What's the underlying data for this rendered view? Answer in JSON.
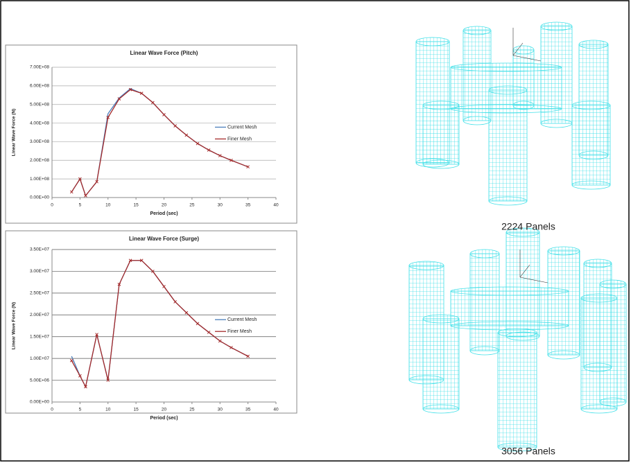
{
  "chart_data": [
    {
      "type": "line",
      "title": "Linear Wave Force (Pitch)",
      "x_label": "Period (sec)",
      "y_label": "Linear Wave Force (N)",
      "x": [
        3.5,
        5,
        6,
        8,
        10,
        12,
        14,
        16,
        18,
        20,
        22,
        24,
        26,
        28,
        30,
        32,
        35
      ],
      "series": [
        {
          "name": "Current Mesh",
          "color": "#4a7ebb",
          "values": [
            30000000,
            100000000,
            10000000,
            85000000,
            450000000,
            535000000,
            585000000,
            560000000,
            510000000,
            445000000,
            385000000,
            335000000,
            290000000,
            255000000,
            225000000,
            200000000,
            165000000
          ]
        },
        {
          "name": "Finer Mesh",
          "color": "#a52a2a",
          "values": [
            30000000,
            100000000,
            10000000,
            85000000,
            430000000,
            530000000,
            580000000,
            560000000,
            510000000,
            445000000,
            385000000,
            335000000,
            290000000,
            255000000,
            225000000,
            200000000,
            165000000
          ]
        }
      ],
      "xlim": [
        0,
        40
      ],
      "xticks": [
        0,
        5,
        10,
        15,
        20,
        25,
        30,
        35,
        40
      ],
      "ylim": [
        0,
        700000000
      ],
      "yticks": [
        {
          "value": 0,
          "label": "0.00E+00"
        },
        {
          "value": 100000000,
          "label": "1.00E+08"
        },
        {
          "value": 200000000,
          "label": "2.00E+08"
        },
        {
          "value": 300000000,
          "label": "3.00E+08"
        },
        {
          "value": 400000000,
          "label": "4.00E+08"
        },
        {
          "value": 500000000,
          "label": "5.00E+08"
        },
        {
          "value": 600000000,
          "label": "6.00E+08"
        },
        {
          "value": 700000000,
          "label": "7.00E+08"
        }
      ],
      "grid": true,
      "legend": "right"
    },
    {
      "type": "line",
      "title": "Linear Wave Force (Surge)",
      "x_label": "Period (sec)",
      "y_label": "Linear Wave Force (N)",
      "x": [
        3.5,
        5,
        6,
        8,
        10,
        12,
        14,
        16,
        18,
        20,
        22,
        24,
        26,
        28,
        30,
        32,
        35
      ],
      "series": [
        {
          "name": "Current Mesh",
          "color": "#4a7ebb",
          "values": [
            10500000,
            6000000,
            3500000,
            15500000,
            5000000,
            27000000,
            32500000,
            32500000,
            30000000,
            26500000,
            23000000,
            20500000,
            18000000,
            16000000,
            14000000,
            12500000,
            10500000
          ]
        },
        {
          "name": "Finer Mesh",
          "color": "#a52a2a",
          "values": [
            9500000,
            6000000,
            3500000,
            15500000,
            5000000,
            27000000,
            32500000,
            32500000,
            30000000,
            26500000,
            23000000,
            20500000,
            18000000,
            16000000,
            14000000,
            12500000,
            10500000
          ]
        }
      ],
      "xlim": [
        0,
        40
      ],
      "xticks": [
        0,
        5,
        10,
        15,
        20,
        25,
        30,
        35,
        40
      ],
      "ylim": [
        0,
        35000000
      ],
      "yticks": [
        {
          "value": 0,
          "label": "0.00E+00"
        },
        {
          "value": 5000000,
          "label": "5.00E+06"
        },
        {
          "value": 10000000,
          "label": "1.00E+07"
        },
        {
          "value": 15000000,
          "label": "1.50E+07"
        },
        {
          "value": 20000000,
          "label": "2.00E+07"
        },
        {
          "value": 25000000,
          "label": "2.50E+07"
        },
        {
          "value": 30000000,
          "label": "3.00E+07"
        },
        {
          "value": 35000000,
          "label": "3.50E+07"
        }
      ],
      "grid": true,
      "legend": "right"
    }
  ],
  "captions": [
    "2224 Panels",
    "3056 Panels"
  ]
}
